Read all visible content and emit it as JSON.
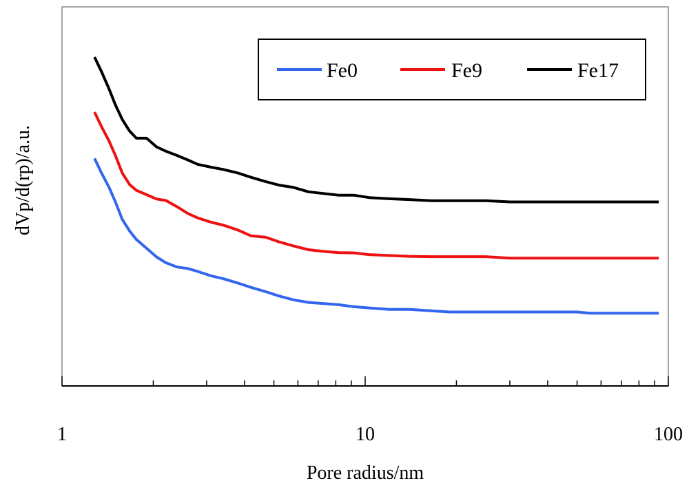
{
  "chart_data": {
    "type": "line",
    "title": "",
    "xlabel": "Pore radius/nm",
    "ylabel": "dVp/d(rp)/a.u.",
    "xscale": "log",
    "xlim": [
      1,
      100
    ],
    "ylim": [
      0,
      1
    ],
    "y_ticks_shown": false,
    "x_tick_labels": [
      "1",
      "10",
      "100"
    ],
    "legend": {
      "placement": "top-right",
      "entries": [
        "Fe0",
        "Fe9",
        "Fe17"
      ]
    },
    "series": [
      {
        "name": "Fe0",
        "color": "#3366ee",
        "x": [
          1.28,
          1.35,
          1.43,
          1.5,
          1.58,
          1.67,
          1.76,
          1.9,
          2.05,
          2.2,
          2.4,
          2.6,
          2.8,
          3.1,
          3.4,
          3.8,
          4.2,
          4.7,
          5.2,
          5.8,
          6.5,
          7.3,
          8.2,
          9.2,
          10.3,
          12,
          14,
          16.5,
          19,
          25,
          30,
          40,
          50,
          55,
          70,
          93
        ],
        "y": [
          0.65,
          0.6,
          0.55,
          0.5,
          0.44,
          0.4,
          0.37,
          0.34,
          0.31,
          0.29,
          0.275,
          0.27,
          0.26,
          0.245,
          0.235,
          0.22,
          0.205,
          0.19,
          0.175,
          0.162,
          0.153,
          0.149,
          0.145,
          0.138,
          0.134,
          0.129,
          0.129,
          0.124,
          0.12,
          0.12,
          0.12,
          0.12,
          0.12,
          0.116,
          0.116,
          0.116
        ]
      },
      {
        "name": "Fe9",
        "color": "#ee1111",
        "x": [
          1.28,
          1.35,
          1.43,
          1.5,
          1.58,
          1.67,
          1.76,
          1.9,
          2.05,
          2.2,
          2.4,
          2.6,
          2.8,
          3.1,
          3.4,
          3.8,
          4.2,
          4.7,
          5.2,
          5.8,
          6.5,
          7.3,
          8.2,
          9.2,
          10.3,
          12,
          14,
          16.5,
          19,
          25,
          30,
          40,
          50,
          55,
          70,
          93
        ],
        "y": [
          0.81,
          0.76,
          0.71,
          0.66,
          0.6,
          0.56,
          0.54,
          0.525,
          0.51,
          0.505,
          0.483,
          0.46,
          0.445,
          0.43,
          0.42,
          0.403,
          0.383,
          0.378,
          0.362,
          0.348,
          0.335,
          0.329,
          0.325,
          0.324,
          0.318,
          0.315,
          0.312,
          0.311,
          0.311,
          0.311,
          0.306,
          0.306,
          0.306,
          0.306,
          0.306,
          0.306
        ]
      },
      {
        "name": "Fe17",
        "color": "#000000",
        "x": [
          1.28,
          1.35,
          1.43,
          1.5,
          1.58,
          1.67,
          1.76,
          1.9,
          2.05,
          2.2,
          2.4,
          2.6,
          2.8,
          3.1,
          3.4,
          3.8,
          4.2,
          4.7,
          5.2,
          5.8,
          6.5,
          7.3,
          8.2,
          9.2,
          10.3,
          12,
          14,
          16.5,
          19,
          25,
          30,
          40,
          50,
          55,
          70,
          93
        ],
        "y": [
          1.0,
          0.95,
          0.89,
          0.835,
          0.785,
          0.745,
          0.72,
          0.72,
          0.69,
          0.675,
          0.66,
          0.645,
          0.63,
          0.62,
          0.612,
          0.6,
          0.585,
          0.57,
          0.558,
          0.55,
          0.535,
          0.529,
          0.523,
          0.523,
          0.515,
          0.511,
          0.508,
          0.504,
          0.504,
          0.504,
          0.5,
          0.5,
          0.5,
          0.5,
          0.5,
          0.5
        ]
      }
    ]
  }
}
